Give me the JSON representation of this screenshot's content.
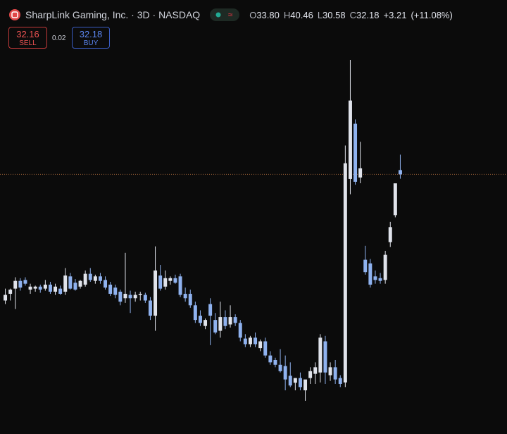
{
  "header": {
    "title": "SharpLink Gaming, Inc. · 3D · NASDAQ",
    "ohlc": [
      {
        "prefix": "O",
        "value": 33.8,
        "label": "33.80"
      },
      {
        "prefix": "H",
        "value": 40.46,
        "label": "40.46"
      },
      {
        "prefix": "L",
        "value": 30.58,
        "label": "30.58"
      },
      {
        "prefix": "C",
        "value": 32.18,
        "label": "32.18"
      }
    ],
    "change": "+3.21",
    "change_pct": "(+11.08%)"
  },
  "trade": {
    "sell_price": "32.16",
    "sell_label": "SELL",
    "spread": "0.02",
    "buy_price": "32.18",
    "buy_label": "BUY"
  },
  "chart_data": {
    "type": "candlestick",
    "log_scale": true,
    "ylim": [
      2.28,
      122
    ],
    "up_color": "#e0e3eb",
    "down_color": "#8fb2ef",
    "price_line_color": "#a8683a",
    "open": [
      7.4,
      8.0,
      8.5,
      9.3,
      9.4,
      8.4,
      8.5,
      8.7,
      8.5,
      8.9,
      8.2,
      8.5,
      8.2,
      9.8,
      9.1,
      8.7,
      8.9,
      10.1,
      9.3,
      9.8,
      9.4,
      8.9,
      8.6,
      8.2,
      7.6,
      7.9,
      7.6,
      7.9,
      7.9,
      7.4,
      6.2,
      9.9,
      8.7,
      9.3,
      9.6,
      9.8,
      8.0,
      8.0,
      7.0,
      6.2,
      5.5,
      7.1,
      5.9,
      5.2,
      6.1,
      5.6,
      6.1,
      5.7,
      4.75,
      4.45,
      4.8,
      4.25,
      4.6,
      3.9,
      3.7,
      3.5,
      3.45,
      3.08,
      2.84,
      3.0,
      2.6,
      3.0,
      3.15,
      3.2,
      4.6,
      3.1,
      3.4,
      3.0,
      2.85,
      30.5,
      58,
      31,
      11.9,
      11.4,
      9.8,
      9.6,
      9.4,
      14.6,
      20.0,
      33.8
    ],
    "high": [
      8.5,
      8.5,
      9.7,
      9.6,
      9.7,
      9.0,
      8.8,
      8.9,
      9.4,
      9.2,
      9.0,
      8.8,
      10.8,
      10.2,
      9.5,
      9.4,
      10.5,
      10.8,
      10.0,
      10.2,
      9.8,
      9.2,
      8.9,
      8.4,
      12.9,
      8.3,
      8.2,
      8.2,
      8.1,
      7.7,
      13.9,
      11.2,
      10.5,
      9.8,
      10.0,
      10.1,
      8.6,
      8.4,
      7.3,
      6.6,
      6.0,
      7.6,
      6.4,
      7.3,
      6.6,
      7.0,
      6.3,
      5.9,
      5.0,
      4.9,
      5.1,
      4.7,
      4.8,
      4.1,
      3.8,
      4.2,
      3.9,
      3.6,
      3.0,
      3.2,
      2.9,
      3.4,
      3.6,
      5.0,
      4.9,
      3.6,
      3.7,
      3.1,
      45,
      122,
      61,
      47,
      14.0,
      12.0,
      10.5,
      10.2,
      13.2,
      18.5,
      28.8,
      40.46
    ],
    "low": [
      7.1,
      7.4,
      6.7,
      8.3,
      8.8,
      8.0,
      8.2,
      8.1,
      8.3,
      8.0,
      7.9,
      7.9,
      7.9,
      8.4,
      8.3,
      8.5,
      8.7,
      9.2,
      9.0,
      9.0,
      8.4,
      7.8,
      7.6,
      7.0,
      7.2,
      6.4,
      7.3,
      7.4,
      7.2,
      5.9,
      5.2,
      8.3,
      8.4,
      8.9,
      9.0,
      7.7,
      7.3,
      6.8,
      5.7,
      5.5,
      5.3,
      4.4,
      5.0,
      4.8,
      5.3,
      5.4,
      5.5,
      4.6,
      4.3,
      4.3,
      4.3,
      4.1,
      3.8,
      3.5,
      3.4,
      3.2,
      2.6,
      2.7,
      2.6,
      2.6,
      2.3,
      2.8,
      2.8,
      2.85,
      2.8,
      2.9,
      2.8,
      2.7,
      2.7,
      25.5,
      28.5,
      29,
      10.0,
      8.6,
      9.0,
      9.0,
      9.0,
      13.8,
      19.5,
      30.58
    ],
    "close": [
      7.9,
      8.4,
      9.3,
      8.6,
      9.0,
      8.7,
      8.7,
      8.4,
      8.9,
      8.2,
      8.7,
      8.0,
      9.9,
      8.5,
      8.4,
      9.3,
      10.1,
      9.4,
      9.8,
      9.3,
      8.6,
      8.0,
      7.9,
      7.3,
      8.0,
      7.6,
      7.9,
      8.0,
      7.4,
      6.2,
      10.5,
      8.5,
      9.6,
      9.6,
      9.1,
      7.9,
      7.6,
      7.0,
      5.9,
      5.7,
      5.9,
      6.2,
      5.1,
      6.1,
      5.5,
      6.1,
      5.7,
      4.8,
      4.45,
      4.8,
      4.45,
      4.6,
      3.9,
      3.6,
      3.5,
      3.25,
      2.95,
      2.75,
      3.0,
      2.7,
      2.95,
      3.25,
      3.4,
      4.8,
      3.2,
      3.4,
      2.95,
      2.8,
      36.6,
      76,
      29.5,
      34.5,
      10.3,
      8.9,
      9.4,
      9.3,
      12.6,
      17.4,
      28.97,
      32.18
    ]
  }
}
